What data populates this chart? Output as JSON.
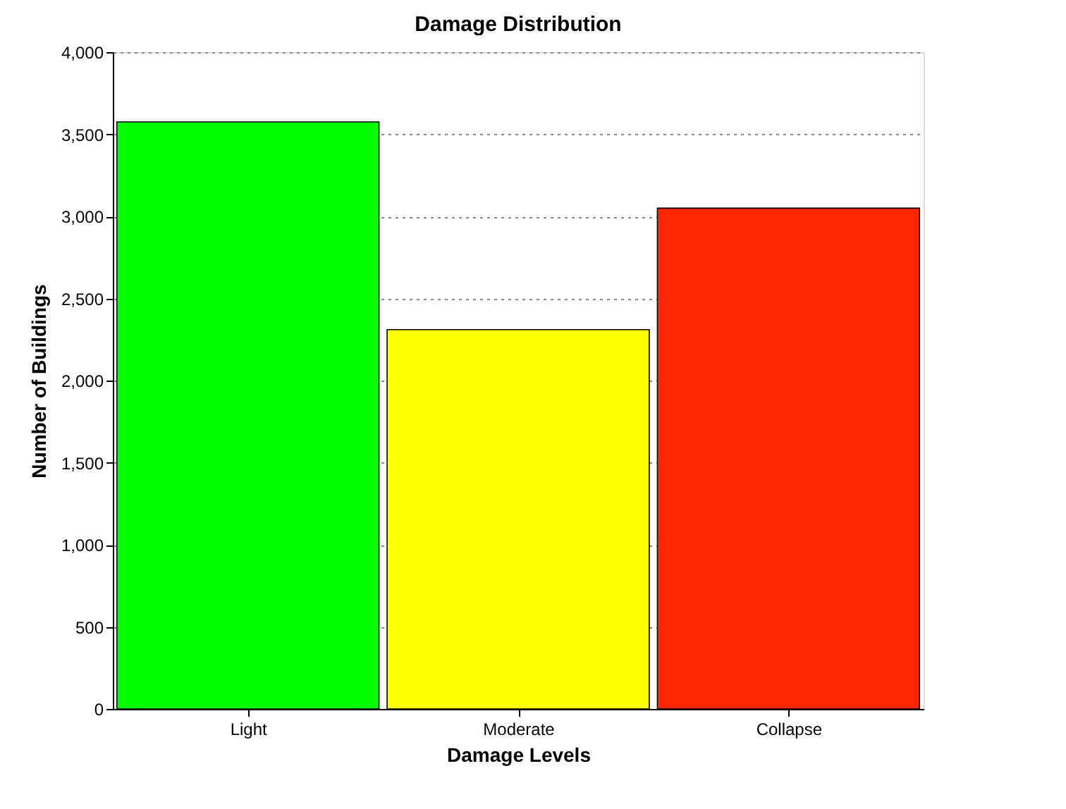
{
  "chart_data": {
    "type": "bar",
    "title": "Damage Distribution",
    "xlabel": "Damage Levels",
    "ylabel": "Number of Buildings",
    "categories": [
      "Light",
      "Moderate",
      "Collapse"
    ],
    "values": [
      3575,
      2310,
      3050
    ],
    "colors": [
      "#00ff00",
      "#ffff00",
      "#ff2600"
    ],
    "ylim": [
      0,
      4000
    ],
    "yticks": [
      {
        "value": 0,
        "label": "0"
      },
      {
        "value": 500,
        "label": "500"
      },
      {
        "value": 1000,
        "label": "1,000"
      },
      {
        "value": 1500,
        "label": "1,500"
      },
      {
        "value": 2000,
        "label": "2,000"
      },
      {
        "value": 2500,
        "label": "2,500"
      },
      {
        "value": 3000,
        "label": "3,000"
      },
      {
        "value": 3500,
        "label": "3,500"
      },
      {
        "value": 4000,
        "label": "4,000"
      }
    ],
    "grid": "y"
  }
}
